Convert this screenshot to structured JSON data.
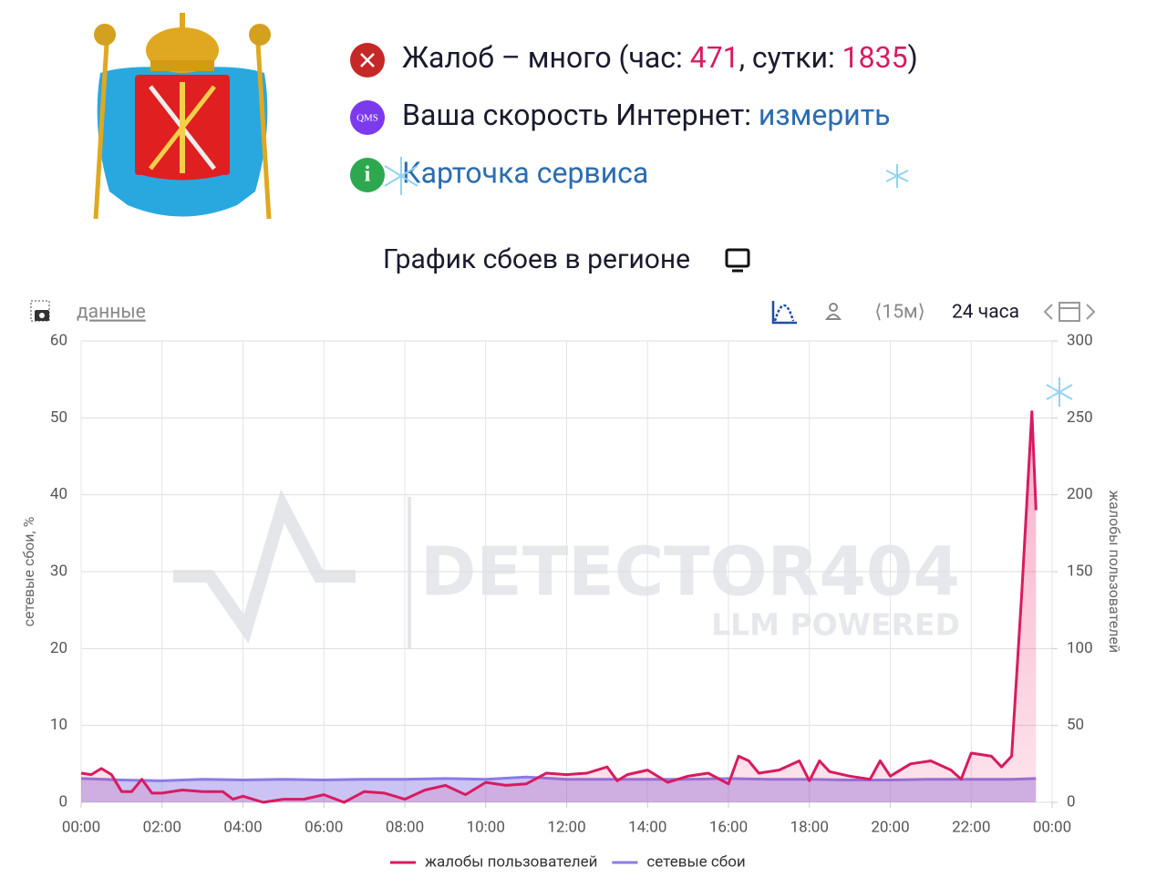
{
  "header": {
    "status": {
      "prefix": "Жалоб – много (час: ",
      "hour": 471,
      "mid": ", сутки: ",
      "day": 1835,
      "suffix": ")"
    },
    "speed": {
      "label": "Ваша скорость Интернет: ",
      "link": "измерить"
    },
    "qms_icon": "QMS",
    "info_icon": "i",
    "service_card": "Карточка сервиса"
  },
  "toolbar": {
    "data_link": "данные",
    "interval": "⟨15м⟩",
    "period": "24 часа"
  },
  "watermark": {
    "brand": "DETECTOR404",
    "tagline": "LLM POWERED"
  },
  "chart_data": {
    "type": "area",
    "title": "График сбоев в регионе",
    "y_label": "сетевые сбои, %",
    "y2_label": "жалобы пользователей",
    "xlim": [
      0,
      24
    ],
    "xticks": [
      {
        "value": 0,
        "label": "00:00"
      },
      {
        "value": 2,
        "label": "02:00"
      },
      {
        "value": 4,
        "label": "04:00"
      },
      {
        "value": 6,
        "label": "06:00"
      },
      {
        "value": 8,
        "label": "08:00"
      },
      {
        "value": 10,
        "label": "10:00"
      },
      {
        "value": 12,
        "label": "12:00"
      },
      {
        "value": 14,
        "label": "14:00"
      },
      {
        "value": 16,
        "label": "16:00"
      },
      {
        "value": 18,
        "label": "18:00"
      },
      {
        "value": 20,
        "label": "20:00"
      },
      {
        "value": 22,
        "label": "22:00"
      },
      {
        "value": 24,
        "label": "00:00"
      }
    ],
    "ylim": [
      0,
      60
    ],
    "yticks": [
      0,
      10,
      20,
      30,
      40,
      50,
      60
    ],
    "y2lim": [
      0,
      300
    ],
    "y2ticks": [
      0,
      50,
      100,
      150,
      200,
      250,
      300
    ],
    "grid": true,
    "legend": "bottom",
    "series": [
      {
        "name": "жалобы пользователей",
        "color": "#d81b60",
        "axis": "y2",
        "x": [
          0,
          0.25,
          0.5,
          0.75,
          1,
          1.25,
          1.5,
          1.75,
          2,
          2.5,
          3,
          3.5,
          3.75,
          4,
          4.5,
          5,
          5.5,
          6,
          6.5,
          7,
          7.5,
          8,
          8.5,
          9,
          9.5,
          10,
          10.5,
          11,
          11.5,
          12,
          12.5,
          13,
          13.25,
          13.5,
          14,
          14.5,
          15,
          15.5,
          16,
          16.25,
          16.5,
          16.75,
          17.25,
          17.75,
          18,
          18.25,
          18.5,
          19,
          19.5,
          19.75,
          20,
          20.5,
          21,
          21.5,
          21.75,
          22,
          22.5,
          22.75,
          23,
          23.25,
          23.5,
          23.6
        ],
        "values": [
          19,
          18,
          22,
          18,
          7,
          7,
          15,
          6,
          6,
          8,
          7,
          7,
          2,
          4,
          0,
          2,
          2,
          5,
          0,
          7,
          6,
          2,
          8,
          11,
          5,
          13,
          11,
          12,
          19,
          18,
          19,
          23,
          14,
          18,
          21,
          13,
          17,
          19,
          12,
          30,
          27,
          19,
          21,
          27,
          14,
          27,
          20,
          17,
          15,
          27,
          17,
          25,
          27,
          21,
          15,
          32,
          30,
          23,
          30,
          136,
          254,
          190
        ]
      },
      {
        "name": "сетевые сбои",
        "color": "#8c7ae6",
        "x": [
          0,
          1,
          2,
          3,
          4,
          5,
          6,
          7,
          8,
          9,
          10,
          11,
          12,
          13,
          14,
          15,
          16,
          17,
          18,
          19,
          20,
          21,
          22,
          23,
          23.6
        ],
        "values": [
          3.1,
          2.9,
          2.8,
          3.0,
          2.9,
          3.0,
          2.9,
          3.0,
          3.0,
          3.1,
          3.0,
          3.3,
          3.0,
          3.0,
          3.0,
          3.0,
          3.1,
          3.0,
          3.0,
          2.9,
          2.9,
          3.0,
          3.0,
          3.0,
          3.1
        ]
      }
    ]
  }
}
